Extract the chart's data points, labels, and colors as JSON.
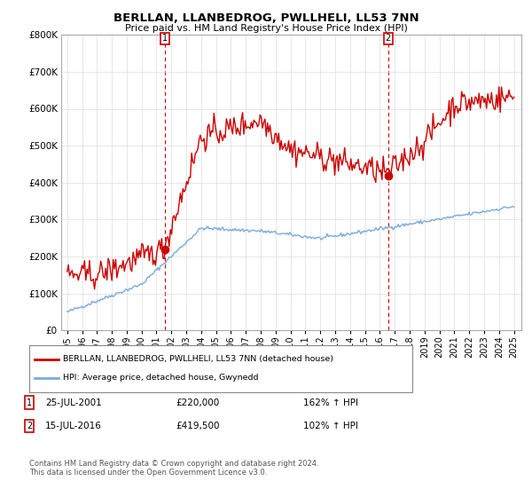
{
  "title": "BERLLAN, LLANBEDROG, PWLLHELI, LL53 7NN",
  "subtitle": "Price paid vs. HM Land Registry's House Price Index (HPI)",
  "legend_line1": "BERLLAN, LLANBEDROG, PWLLHELI, LL53 7NN (detached house)",
  "legend_line2": "HPI: Average price, detached house, Gwynedd",
  "annotation1_label": "1",
  "annotation1_date": "25-JUL-2001",
  "annotation1_price": "£220,000",
  "annotation1_hpi": "162% ↑ HPI",
  "annotation2_label": "2",
  "annotation2_date": "15-JUL-2016",
  "annotation2_price": "£419,500",
  "annotation2_hpi": "102% ↑ HPI",
  "footnote": "Contains HM Land Registry data © Crown copyright and database right 2024.\nThis data is licensed under the Open Government Licence v3.0.",
  "red_color": "#cc0000",
  "blue_color": "#7aabdb",
  "vline_color": "#cc0000",
  "background_color": "#ffffff",
  "grid_color": "#dddddd",
  "ylim": [
    0,
    800000
  ],
  "yticks": [
    0,
    100000,
    200000,
    300000,
    400000,
    500000,
    600000,
    700000,
    800000
  ],
  "sale1_year": 2001.55,
  "sale1_price": 220000,
  "sale2_year": 2016.55,
  "sale2_price": 419500
}
